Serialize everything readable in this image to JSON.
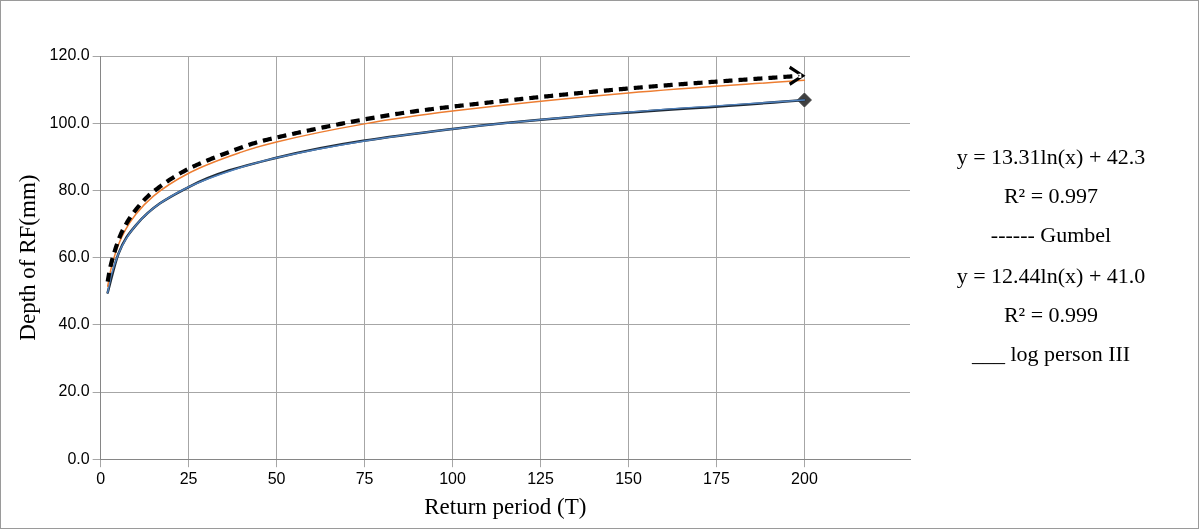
{
  "chart_data": {
    "type": "line",
    "xlabel": "Return period (T)",
    "ylabel": "Depth of RF(mm)",
    "xlim": [
      0,
      230
    ],
    "xticks": [
      0,
      25,
      50,
      75,
      100,
      125,
      150,
      175,
      200
    ],
    "ylim": [
      0,
      120
    ],
    "yticks": [
      {
        "value": 0,
        "label": "0.0"
      },
      {
        "value": 20,
        "label": "20.0"
      },
      {
        "value": 40,
        "label": "40.0"
      },
      {
        "value": 60,
        "label": "60.0"
      },
      {
        "value": 80,
        "label": "80.0"
      },
      {
        "value": 100,
        "label": "100.0"
      },
      {
        "value": 120,
        "label": "120.0"
      }
    ],
    "grid": true,
    "series": [
      {
        "color": "#ed7d31",
        "line_style": "solid",
        "x": [
          2,
          3,
          5,
          7,
          10,
          15,
          25,
          40,
          50,
          75,
          100,
          150,
          200
        ],
        "values": [
          51.5,
          56.9,
          63.7,
          68.2,
          72.9,
          78.3,
          85.1,
          91.4,
          94.4,
          99.8,
          103.6,
          109.0,
          112.8
        ]
      },
      {
        "color": "#4f81bd",
        "line_style": "solid",
        "x": [
          2,
          3,
          5,
          7,
          10,
          15,
          25,
          40,
          50,
          75,
          100,
          150,
          200
        ],
        "values": [
          49.6,
          54.7,
          61.0,
          65.2,
          69.6,
          74.7,
          81.0,
          86.9,
          89.7,
          94.7,
          98.3,
          103.3,
          106.9
        ]
      },
      {
        "color": "#1f2a36",
        "line_style": "solid",
        "x": [
          2,
          5,
          10,
          25,
          50,
          100,
          200
        ],
        "values": [
          49.6,
          61.0,
          69.6,
          81.0,
          89.7,
          98.3,
          106.9
        ]
      },
      {
        "type": "scatter",
        "color": "#404040",
        "marker": "diamond",
        "x": [
          200
        ],
        "values": [
          106.9
        ]
      }
    ],
    "annotations": [
      "y = 13.31ln(x) + 42.3",
      "R² = 0.997",
      "------  Gumbel",
      "y = 12.44ln(x) + 41.0",
      "R² = 0.999",
      "___    log person III"
    ]
  }
}
